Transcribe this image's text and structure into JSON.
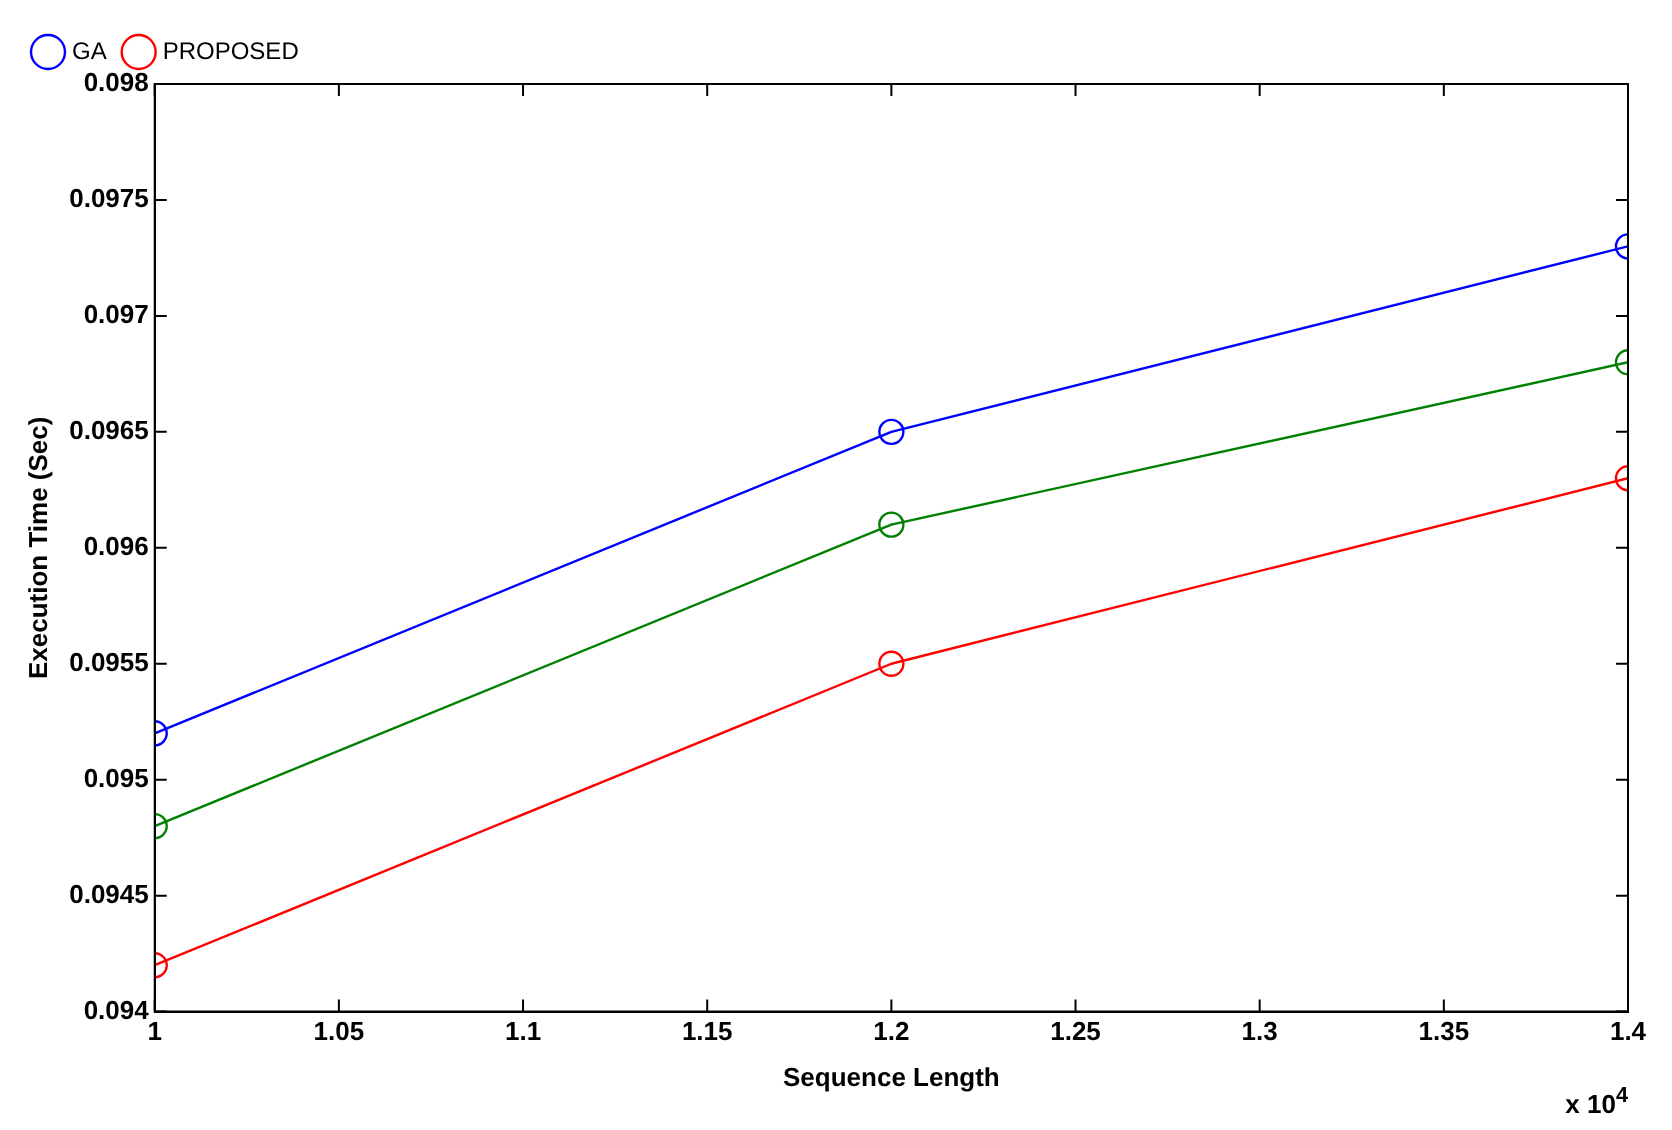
{
  "chart_data": {
    "type": "line",
    "xlabel": "Sequence Length",
    "ylabel": "Execution Time (Sec)",
    "x": [
      1,
      1.2,
      1.4
    ],
    "series": [
      {
        "name": "GA",
        "color": "#0000ff",
        "values": [
          0.0952,
          0.0965,
          0.0973
        ]
      },
      {
        "color": "#008000",
        "values": [
          0.0948,
          0.0961,
          0.0968
        ]
      },
      {
        "name": "PROPOSED",
        "color": "#ff0000",
        "values": [
          0.0942,
          0.0955,
          0.0963
        ]
      }
    ],
    "xlim": [
      1,
      1.4
    ],
    "xticks": [
      1,
      1.05,
      1.1,
      1.15,
      1.2,
      1.25,
      1.3,
      1.35,
      1.4
    ],
    "ylim": [
      0.094,
      0.098
    ],
    "yticks": [
      0.094,
      0.0945,
      0.095,
      0.0955,
      0.096,
      0.0965,
      0.097,
      0.0975,
      0.098
    ],
    "annotations": [
      "x 10$^{4}$"
    ],
    "legend": "top left",
    "marker": "circle",
    "line_style": "solid",
    "grid": false
  }
}
